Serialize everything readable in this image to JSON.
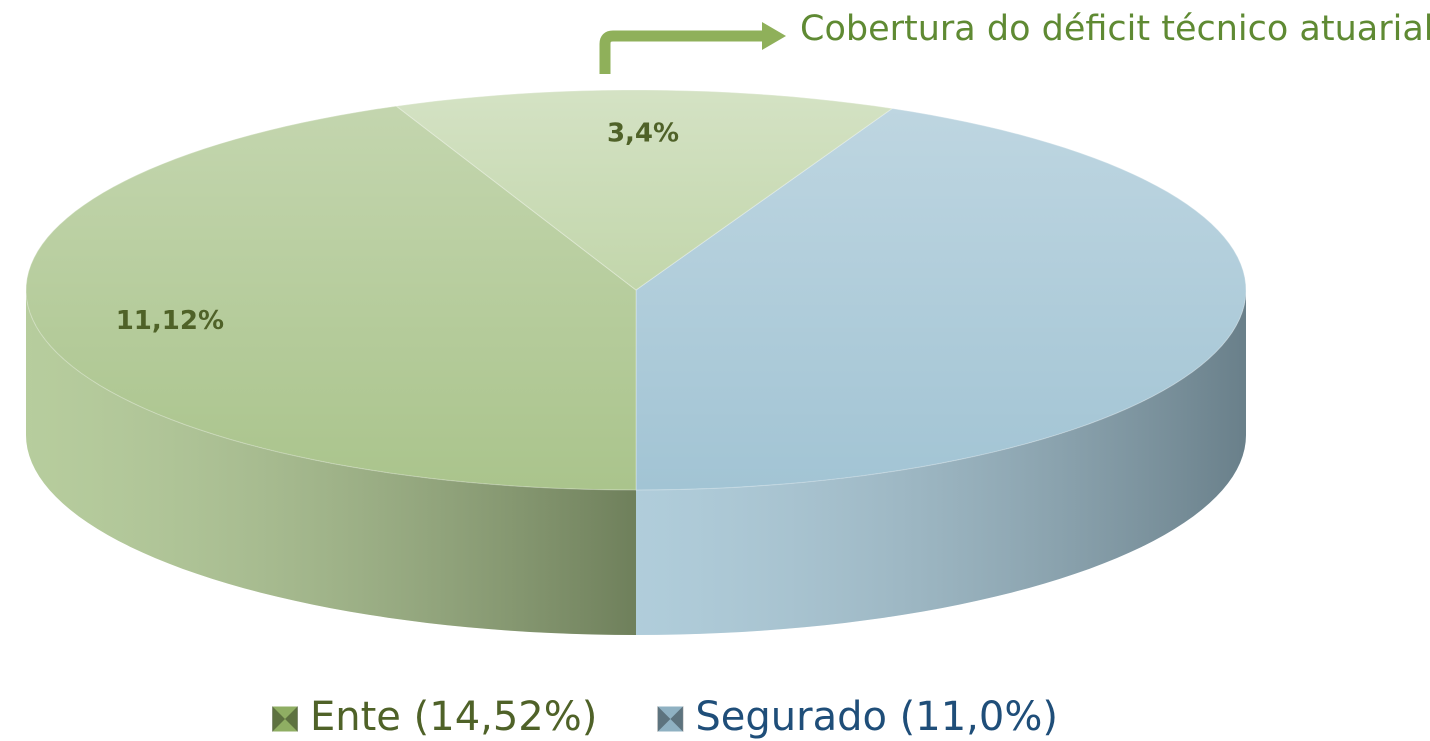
{
  "chart_data": {
    "type": "pie3d",
    "annotation": "Cobertura do déficit técnico atuarial",
    "slices": [
      {
        "value": 11.0,
        "color": "#a2c4d4"
      },
      {
        "value": 11.12,
        "label": "11,12%",
        "color": "#aac48c"
      },
      {
        "value": 3.4,
        "label": "3,4%",
        "color": "#c2d6ab"
      }
    ],
    "legend": [
      {
        "name": "Ente (14,52%)",
        "color": "#8fae63"
      },
      {
        "name": "Segurado (11,0%)",
        "color": "#8fb1c2"
      }
    ]
  }
}
